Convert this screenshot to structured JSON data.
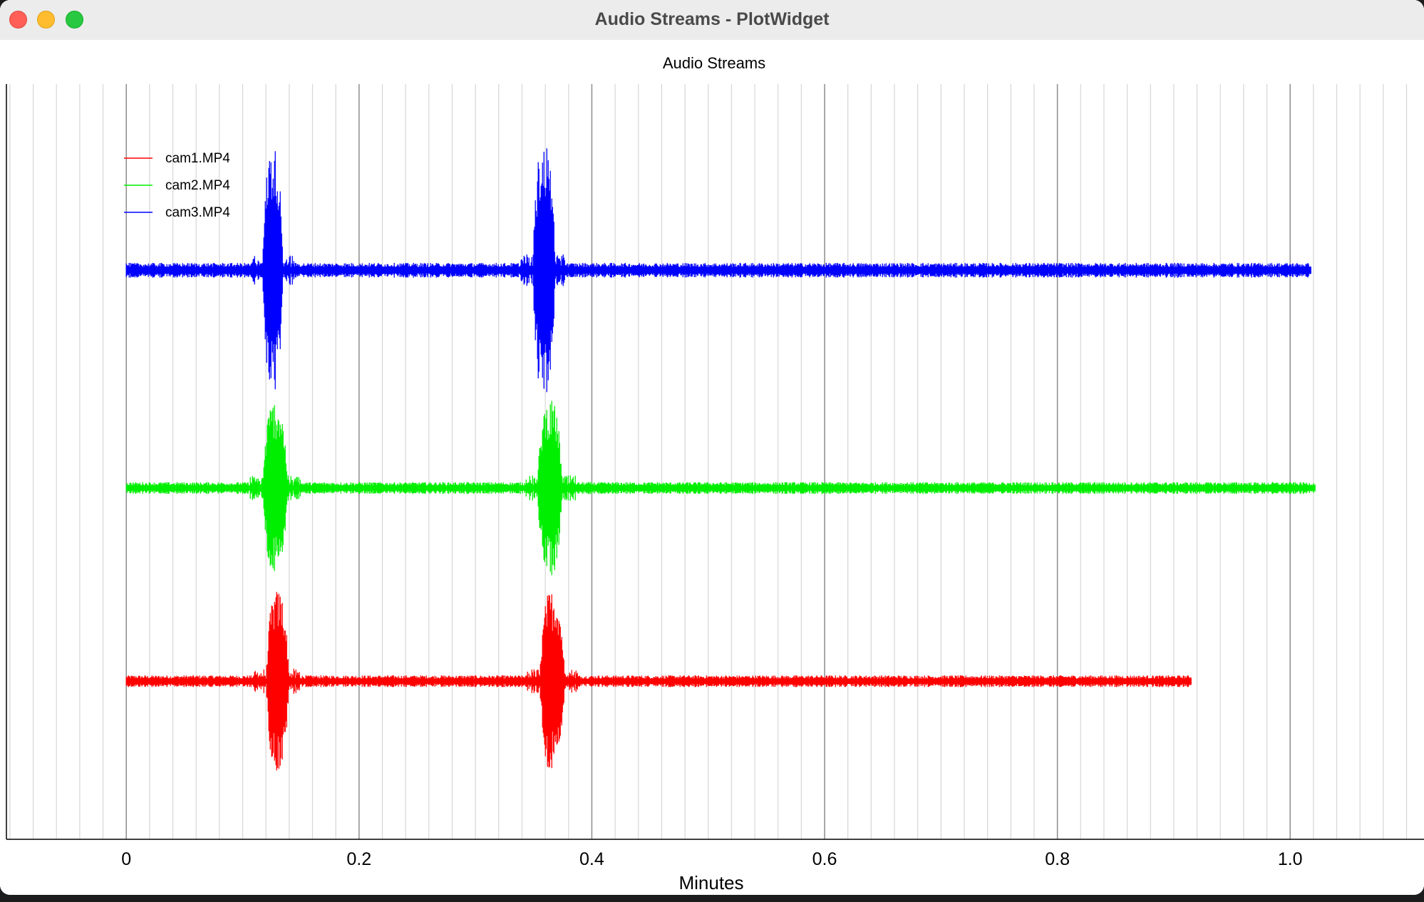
{
  "window": {
    "title": "Audio Streams - PlotWidget"
  },
  "chart_data": {
    "type": "line",
    "title": "Audio Streams",
    "xlabel": "Minutes",
    "ylabel": "",
    "xlim": [
      -0.103,
      1.115
    ],
    "xticks": [
      0,
      0.2,
      0.4,
      0.6,
      0.8,
      1.0
    ],
    "xtick_labels": [
      "0",
      "0.2",
      "0.4",
      "0.6",
      "0.8",
      "1.0"
    ],
    "grid": true,
    "legend_position": "top-left",
    "series": [
      {
        "name": "cam1.MP4",
        "color": "#ff0000",
        "x_start": 0,
        "x_end": 0.915,
        "baseline": -0.55,
        "noise": 0.012,
        "bursts": [
          {
            "center": 0.13,
            "width": 0.02,
            "amplitude": 0.26
          },
          {
            "center": 0.366,
            "width": 0.022,
            "amplitude": 0.26
          }
        ]
      },
      {
        "name": "cam2.MP4",
        "color": "#00ee00",
        "x_start": 0,
        "x_end": 1.022,
        "baseline": 0,
        "noise": 0.012,
        "bursts": [
          {
            "center": 0.128,
            "width": 0.022,
            "amplitude": 0.25
          },
          {
            "center": 0.364,
            "width": 0.022,
            "amplitude": 0.25
          }
        ]
      },
      {
        "name": "cam3.MP4",
        "color": "#0000ff",
        "x_start": 0,
        "x_end": 1.018,
        "baseline": 0.62,
        "noise": 0.015,
        "bursts": [
          {
            "center": 0.126,
            "width": 0.018,
            "amplitude": 0.35
          },
          {
            "center": 0.359,
            "width": 0.02,
            "amplitude": 0.36
          }
        ]
      }
    ]
  }
}
